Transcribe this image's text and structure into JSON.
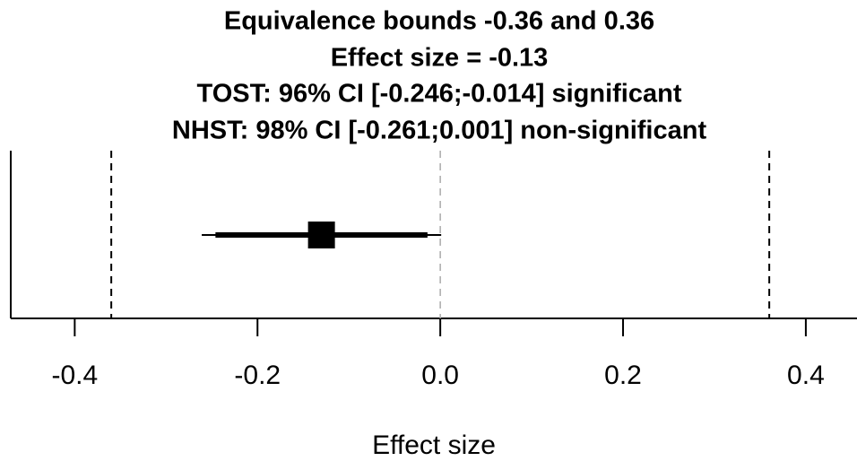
{
  "chart_data": {
    "type": "interval",
    "title": [
      "Equivalence bounds -0.36 and 0.36",
      "Effect size = -0.13",
      "TOST: 96% CI [-0.246;-0.014] significant",
      "NHST: 98% CI [-0.261;0.001] non-significant"
    ],
    "xlabel": "Effect size",
    "effect": -0.13,
    "bounds": [
      -0.36,
      0.36
    ],
    "tost_ci": [
      -0.246,
      -0.014
    ],
    "nhst_ci": [
      -0.261,
      0.001
    ],
    "xlim": [
      -0.47,
      0.456
    ],
    "xticks": [
      -0.4,
      -0.2,
      {
        "value": 0,
        "label": "0.0"
      },
      0.2,
      0.4
    ],
    "color": "#000000"
  }
}
